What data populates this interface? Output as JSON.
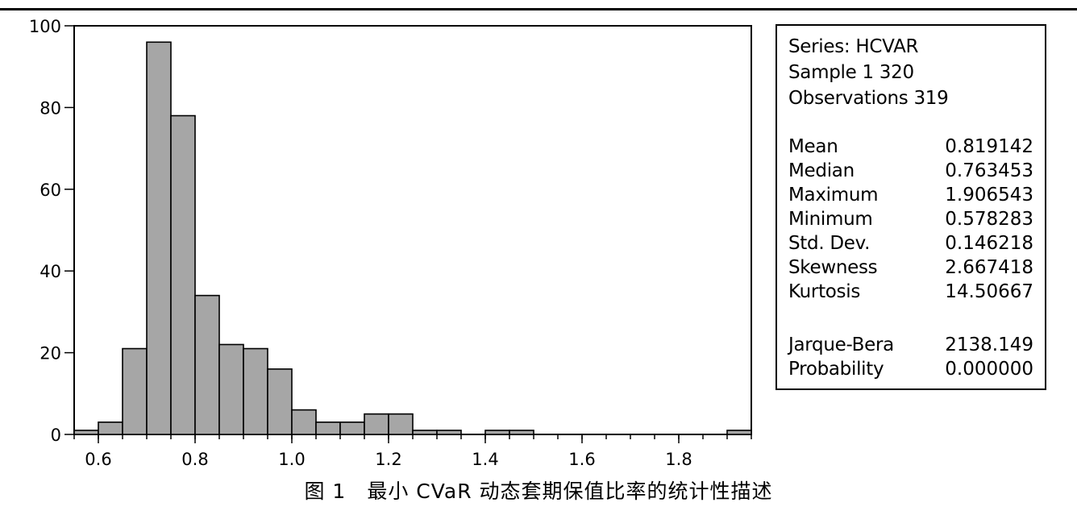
{
  "chart_data": {
    "type": "bar",
    "title": "",
    "xlabel": "",
    "ylabel": "",
    "bin_width": 0.05,
    "bin_starts": [
      0.55,
      0.6,
      0.65,
      0.7,
      0.75,
      0.8,
      0.85,
      0.9,
      0.95,
      1.0,
      1.05,
      1.1,
      1.15,
      1.2,
      1.25,
      1.3,
      1.35,
      1.4,
      1.45,
      1.5,
      1.55,
      1.6,
      1.65,
      1.7,
      1.75,
      1.8,
      1.85,
      1.9
    ],
    "values": [
      1,
      3,
      21,
      96,
      78,
      34,
      22,
      21,
      16,
      6,
      3,
      3,
      5,
      5,
      1,
      1,
      0,
      1,
      1,
      0,
      0,
      0,
      0,
      0,
      0,
      0,
      0,
      1
    ],
    "xlim": [
      0.55,
      1.95
    ],
    "ylim": [
      0,
      100
    ],
    "x_ticks": [
      "0.6",
      "0.8",
      "1.0",
      "1.2",
      "1.4",
      "1.6",
      "1.8"
    ],
    "y_ticks": [
      "0",
      "20",
      "40",
      "60",
      "80",
      "100"
    ],
    "bar_color": "#a6a6a6",
    "grid": false
  },
  "stats": {
    "header": [
      "Series: HCVAR",
      "Sample 1 320",
      "Observations 319"
    ],
    "rows": [
      {
        "label": "Mean",
        "value": "0.819142"
      },
      {
        "label": "Median",
        "value": "0.763453"
      },
      {
        "label": "Maximum",
        "value": "1.906543"
      },
      {
        "label": "Minimum",
        "value": "0.578283"
      },
      {
        "label": "Std. Dev.",
        "value": "0.146218"
      },
      {
        "label": "Skewness",
        "value": "2.667418"
      },
      {
        "label": "Kurtosis",
        "value": "14.50667"
      }
    ],
    "tests": [
      {
        "label": "Jarque-Bera",
        "value": "2138.149"
      },
      {
        "label": "Probability",
        "value": "0.000000"
      }
    ]
  },
  "caption": "图 1　最小 CVaR 动态套期保值比率的统计性描述"
}
